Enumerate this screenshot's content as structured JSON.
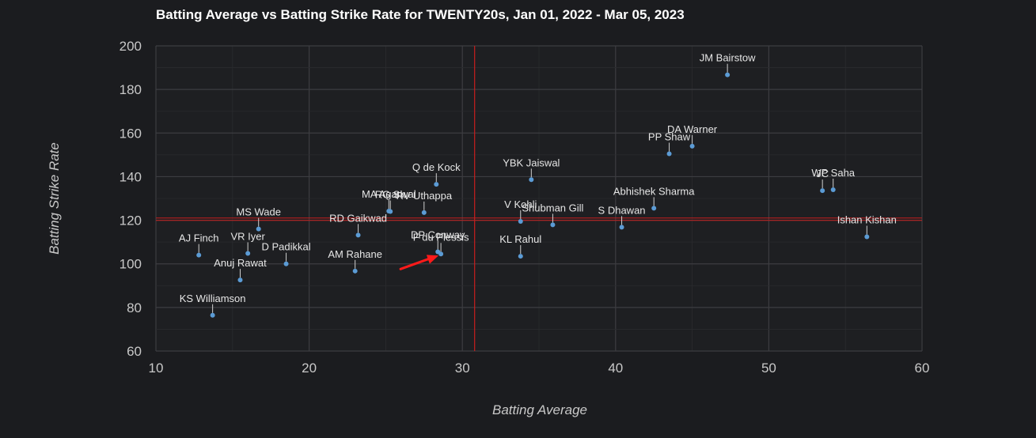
{
  "chart_data": {
    "type": "scatter",
    "title": "Batting Average vs Batting Strike Rate for TWENTY20s, Jan 01, 2022 - Mar 05, 2023",
    "xlabel": "Batting Average",
    "ylabel": "Batting Strike Rate",
    "xlim": [
      10,
      60
    ],
    "ylim": [
      60,
      200
    ],
    "xticks": [
      10,
      20,
      30,
      40,
      50,
      60
    ],
    "yticks": [
      60,
      80,
      100,
      120,
      140,
      160,
      180,
      200
    ],
    "grid": true,
    "reference_lines": {
      "x": 30.8,
      "y": 120.5
    },
    "points": [
      {
        "name": "JM Bairstow",
        "x": 47.3,
        "y": 186.7
      },
      {
        "name": "DA Warner",
        "x": 45.0,
        "y": 154.0
      },
      {
        "name": "PP Shaw",
        "x": 43.5,
        "y": 150.5
      },
      {
        "name": "WP Saha",
        "x": 54.2,
        "y": 134.0
      },
      {
        "name": "JC",
        "x": 53.5,
        "y": 133.6
      },
      {
        "name": "YBK Jaiswal",
        "x": 34.5,
        "y": 138.6
      },
      {
        "name": "Q de Kock",
        "x": 28.3,
        "y": 136.5
      },
      {
        "name": "Abhishek Sharma",
        "x": 42.5,
        "y": 125.5
      },
      {
        "name": "MA Agarwal",
        "x": 25.2,
        "y": 124.2
      },
      {
        "name": "RG Sh",
        "x": 25.3,
        "y": 124.0
      },
      {
        "name": "RV Uthappa",
        "x": 27.5,
        "y": 123.5
      },
      {
        "name": "V Kohli",
        "x": 33.8,
        "y": 119.5
      },
      {
        "name": "Shubman Gill",
        "x": 35.9,
        "y": 117.9
      },
      {
        "name": "S Dhawan",
        "x": 40.4,
        "y": 116.8
      },
      {
        "name": "Ishan Kishan",
        "x": 56.4,
        "y": 112.4
      },
      {
        "name": "MS Wade",
        "x": 16.7,
        "y": 116.0
      },
      {
        "name": "RD Gaikwad",
        "x": 23.2,
        "y": 113.2
      },
      {
        "name": "DP Conway",
        "x": 28.4,
        "y": 105.5
      },
      {
        "name": "F du Plessis",
        "x": 28.6,
        "y": 104.5
      },
      {
        "name": "KL Rahul",
        "x": 33.8,
        "y": 103.5
      },
      {
        "name": "AJ Finch",
        "x": 12.8,
        "y": 104.0
      },
      {
        "name": "VR Iyer",
        "x": 16.0,
        "y": 104.8
      },
      {
        "name": "D Padikkal",
        "x": 18.5,
        "y": 100.0
      },
      {
        "name": "AM Rahane",
        "x": 23.0,
        "y": 96.7
      },
      {
        "name": "Anuj Rawat",
        "x": 15.5,
        "y": 92.6
      },
      {
        "name": "KS Williamson",
        "x": 13.7,
        "y": 76.4
      }
    ]
  },
  "colors": {
    "background": "#1b1c1f",
    "point": "#5b9bd5",
    "reference_line": "#c81e1e",
    "arrow": "#ff1a1a",
    "grid": "#3a3b3e"
  }
}
